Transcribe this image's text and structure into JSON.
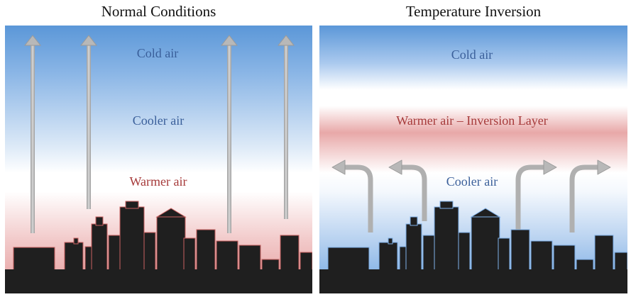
{
  "left_panel": {
    "title": "Normal Conditions",
    "labels": {
      "cold": "Cold air",
      "cooler": "Cooler air",
      "warmer": "Warmer air"
    }
  },
  "right_panel": {
    "title": "Temperature Inversion",
    "labels": {
      "cold": "Cold air",
      "inversion": "Warmer air – Inversion Layer",
      "cooler": "Cooler air"
    }
  },
  "colors": {
    "cold_blue": "#5b97d8",
    "warm_red": "#e09a9a",
    "cold_text": "#3a5f9a",
    "warm_text": "#a63a3a",
    "arrow_gray": "#b5b5b5",
    "building_fill": "#1f1f1f",
    "building_edge_warm": "#c96060",
    "building_edge_cool": "#7fb0e8"
  }
}
